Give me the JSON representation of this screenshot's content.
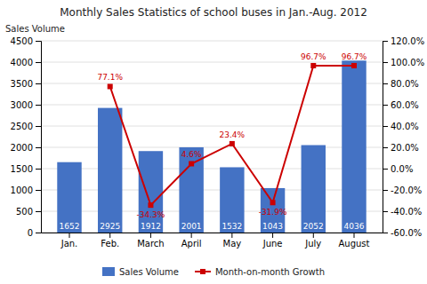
{
  "chart_data": {
    "type": "bar",
    "title": "Monthly Sales Statistics of school buses in Jan.-Aug. 2012",
    "ylabel": "Sales Volume",
    "categories": [
      "Jan.",
      "Feb.",
      "March",
      "April",
      "May",
      "June",
      "July",
      "August"
    ],
    "series": [
      {
        "name": "Sales Volume",
        "type": "bar",
        "color": "#4472C4",
        "values": [
          1652,
          2925,
          1912,
          2001,
          1532,
          1043,
          2052,
          4036
        ]
      },
      {
        "name": "Month-on-month Growth",
        "type": "line",
        "color": "#CC0000",
        "marker": "square",
        "axis": "y2",
        "values": [
          null,
          77.1,
          -34.3,
          4.6,
          23.4,
          -31.9,
          96.7,
          96.7
        ],
        "value_labels": [
          null,
          "77.1%",
          "-34.3%",
          "4.6%",
          "23.4%",
          "-31.9%",
          "96.7%",
          "96.7%"
        ]
      }
    ],
    "ylim": [
      0,
      4500
    ],
    "yticks": [
      0,
      500,
      1000,
      1500,
      2000,
      2500,
      3000,
      3500,
      4000,
      4500
    ],
    "y2lim": [
      -60.0,
      120.0
    ],
    "y2ticks": [
      {
        "value": -60.0,
        "label": "-60.0%"
      },
      {
        "value": -40.0,
        "label": "-40.0%"
      },
      {
        "value": -20.0,
        "label": "-20.0%"
      },
      {
        "value": 0.0,
        "label": "0.0%"
      },
      {
        "value": 20.0,
        "label": "20.0%"
      },
      {
        "value": 40.0,
        "label": "40.0%"
      },
      {
        "value": 60.0,
        "label": "60.0%"
      },
      {
        "value": 80.0,
        "label": "80.0%"
      },
      {
        "value": 100.0,
        "label": "100.0%"
      },
      {
        "value": 120.0,
        "label": "120.0%"
      }
    ],
    "grid": true,
    "legend": "bottom",
    "data_labels": true
  }
}
